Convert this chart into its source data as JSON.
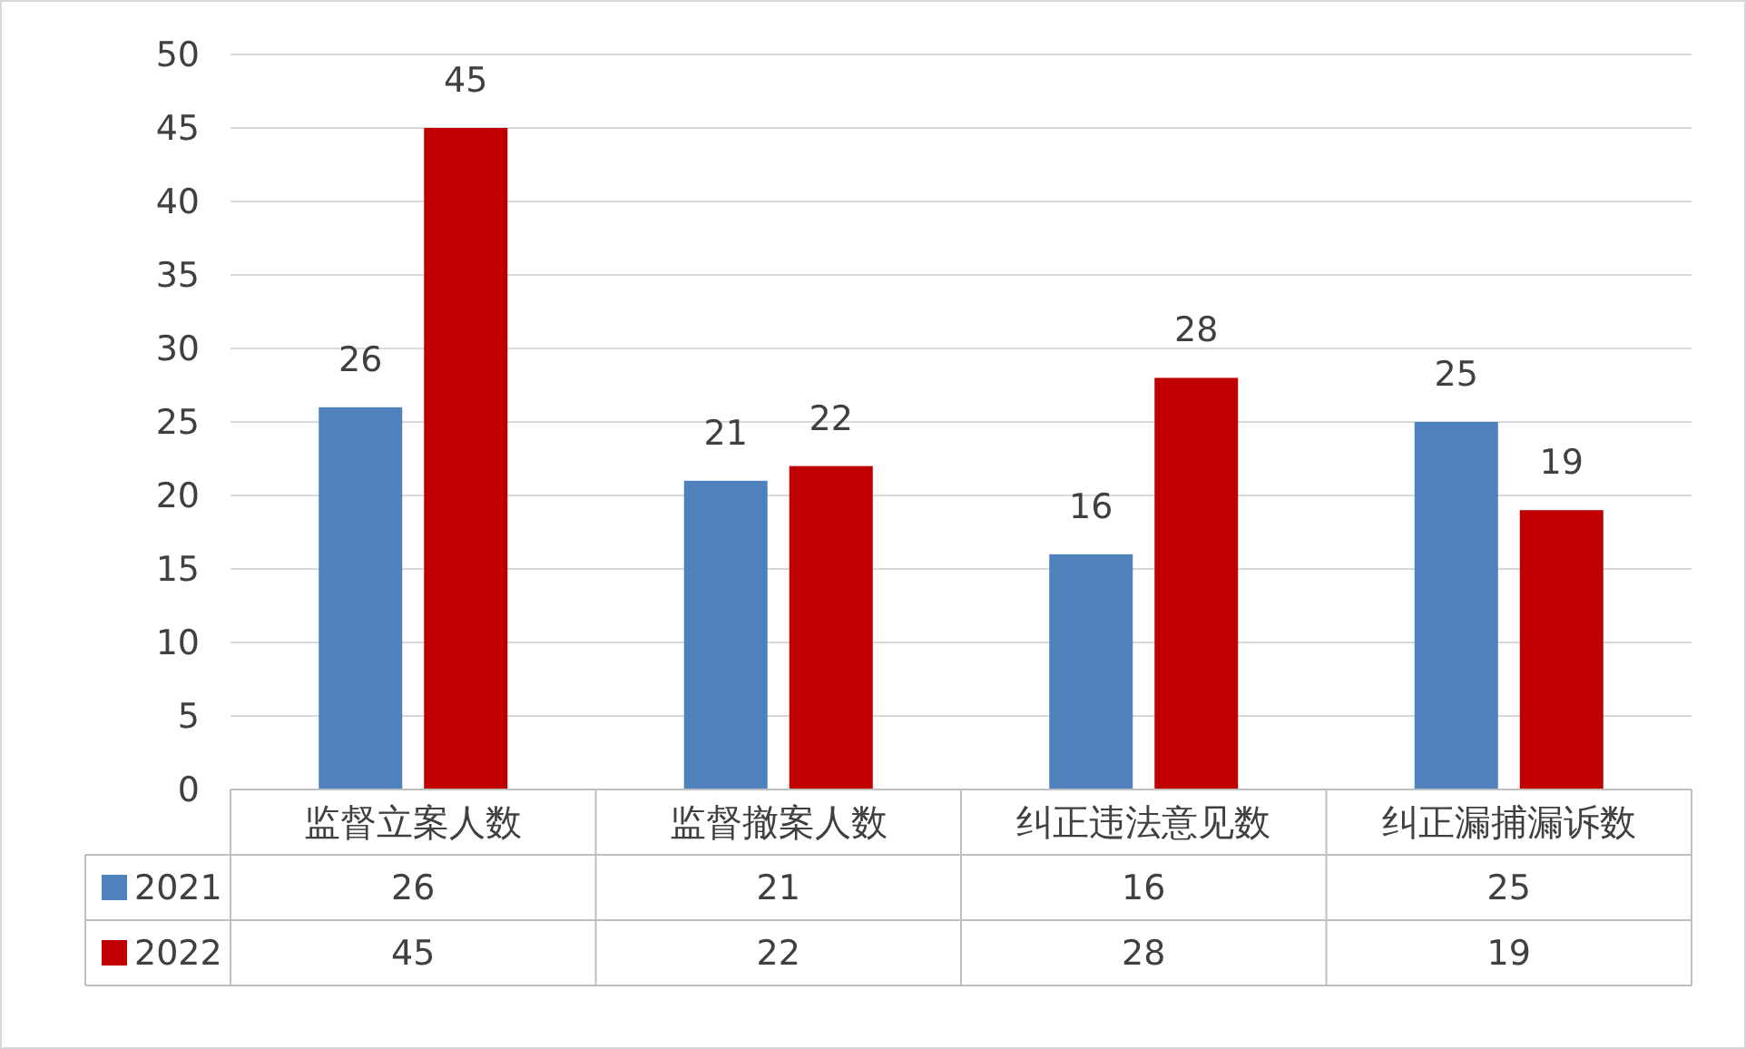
{
  "chart_data": {
    "type": "bar",
    "categories": [
      "监督立案人数",
      "监督撤案人数",
      "纠正违法意见数",
      "纠正漏捕漏诉数"
    ],
    "series": [
      {
        "name": "2021",
        "color": "#4f81bd",
        "values": [
          26,
          21,
          16,
          25
        ]
      },
      {
        "name": "2022",
        "color": "#c00000",
        "values": [
          45,
          22,
          28,
          19
        ]
      }
    ],
    "ylim": [
      0,
      50
    ],
    "yticks": [
      0,
      5,
      10,
      15,
      20,
      25,
      30,
      35,
      40,
      45,
      50
    ],
    "grid": "y",
    "data_labels": true,
    "legend": "bottom left",
    "annotations": [
      "26",
      "21",
      "16",
      "25",
      "45",
      "22",
      "28",
      "19"
    ]
  }
}
